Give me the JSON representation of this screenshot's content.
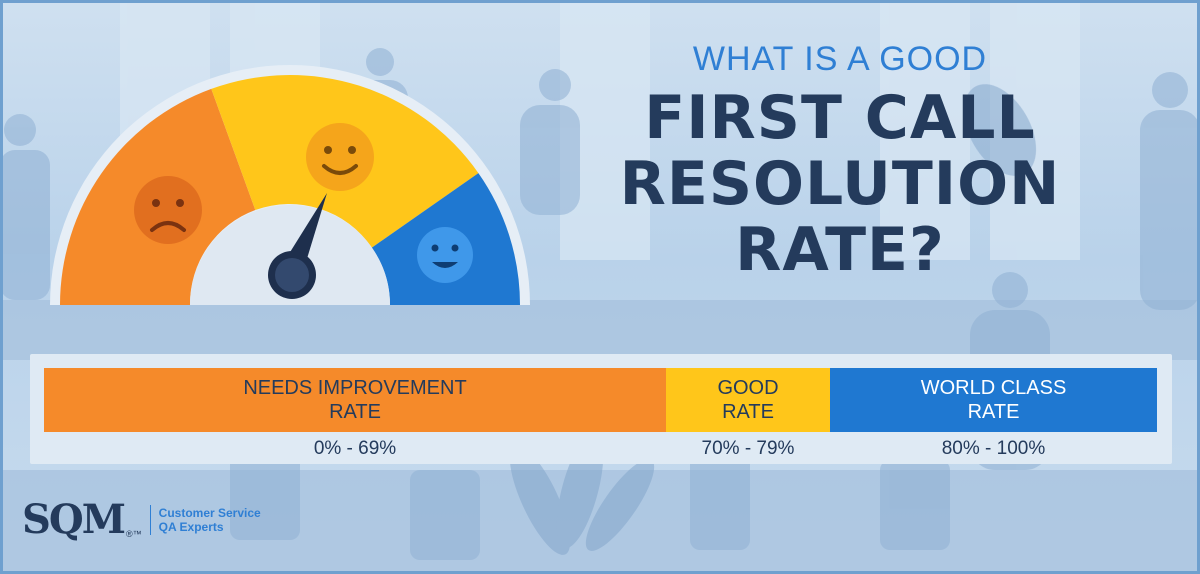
{
  "heading": {
    "small": "WHAT IS A GOOD",
    "line1": "FIRST CALL",
    "line2": "RESOLUTION",
    "line3": "RATE?"
  },
  "gauge": {
    "segments": [
      {
        "key": "needs-improvement",
        "color": "#f58a2a",
        "face": "sad-face-icon"
      },
      {
        "key": "good",
        "color": "#ffc61a",
        "face": "smiling-face-icon"
      },
      {
        "key": "world-class",
        "color": "#1f78d1",
        "face": "happy-face-icon"
      }
    ]
  },
  "table": {
    "bands": [
      {
        "line1": "NEEDS IMPROVEMENT",
        "line2": "RATE",
        "range": "0% - 69%",
        "color": "#f58a2a"
      },
      {
        "line1": "GOOD",
        "line2": "RATE",
        "range": "70% - 79%",
        "color": "#ffc61a"
      },
      {
        "line1": "WORLD CLASS",
        "line2": "RATE",
        "range": "80% - 100%",
        "color": "#1f78d1"
      }
    ]
  },
  "logo": {
    "mark": "SQM",
    "tm": "®™",
    "tagline1": "Customer Service",
    "tagline2": "QA Experts"
  }
}
